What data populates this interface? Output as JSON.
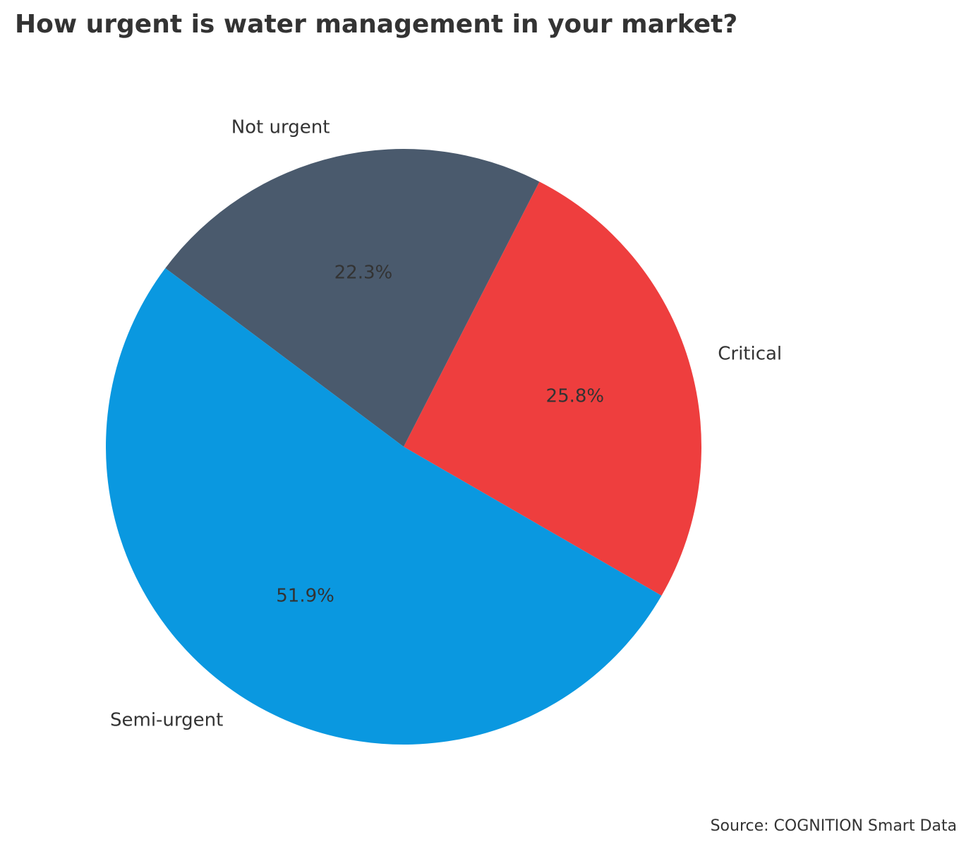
{
  "chart_data": {
    "type": "pie",
    "title": "How urgent is water management in your market?",
    "categories": [
      "Critical",
      "Not urgent",
      "Semi-urgent"
    ],
    "values": [
      25.8,
      22.3,
      51.9
    ],
    "value_labels": [
      "25.8%",
      "22.3%",
      "51.9%"
    ],
    "colors": [
      "#ee3e3e",
      "#4a5a6d",
      "#0a98e0"
    ],
    "start_angle_deg": -30,
    "direction": "counterclockwise",
    "legend": "none"
  },
  "source": "Source: COGNITION Smart Data"
}
